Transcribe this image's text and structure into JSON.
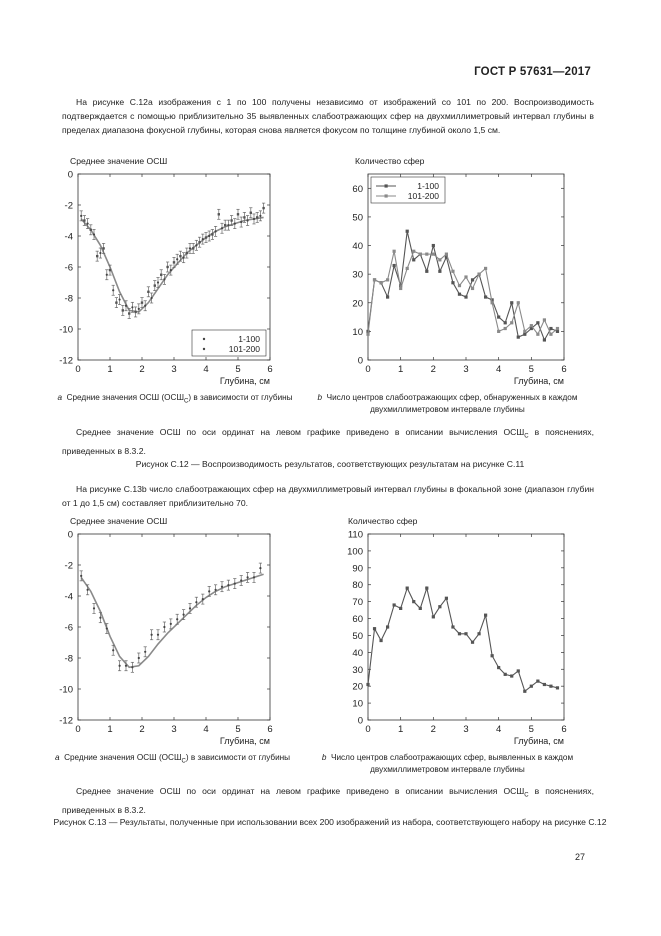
{
  "header": "ГОСТ Р 57631—2017",
  "intro_paragraph": "На рисунке С.12a изображения с 1 по 100 получены независимо от изображений со 101 по 200. Воспроизводимость подтверждается с помощью приблизительно 35 выявленных слабоотражающих сфер на двухмиллиметровый интервал глубины в пределах диапазона фокусной глубины, которая снова является фокусом по толщине глубиной около 1,5 см.",
  "fig12": {
    "left_chart_title": "Среднее значение ОСШ",
    "right_chart_title": "Количество сфер",
    "caption_a_marker": "a",
    "caption_a": "Средние значения ОСШ (ОСШ",
    "caption_a_sub": "С",
    "caption_a_tail": ") в зависимости от глубины",
    "caption_b_marker": "b",
    "caption_b": "Число центров слабоотражающих сфер, обнаруженных в каждом двухмиллиметровом интервале глубины",
    "note": "Среднее значение ОСШ по оси ординат на левом графике приведено в описании вычисления ОСШ",
    "note_sub": "С",
    "note_tail": " в пояснениях, приведенных в 8.3.2.",
    "title": "Рисунок С.12 — Воспроизводимость результатов, соответствующих результатам на рисунке С.11"
  },
  "mid_paragraph": "На рисунке С.13b число слабоотражающих сфер на двухмиллиметровый интервал глубины в фокальной зоне (диапазон глубин от 1 до 1,5 см) составляет приблизительно 70.",
  "fig13": {
    "left_chart_title": "Среднее значение ОСШ",
    "right_chart_title": "Количество сфер",
    "caption_a_marker": "a",
    "caption_a": "Средние значения ОСШ (ОСШ",
    "caption_a_sub": "С",
    "caption_a_tail": ") в зависимости от глубины",
    "caption_b_marker": "b",
    "caption_b": "Число центров слабоотражающих сфер, выявленных в каждом двухмиллиметровом интервале глубины",
    "note": "Среднее значение ОСШ по оси ординат на левом графике приведено в описании вычисления ОСШ",
    "note_sub": "С",
    "note_tail": " в пояснениях, приведенных в 8.3.2.",
    "title": "Рисунок С.13 — Результаты, полученные при использовании всех 200 изображений из набора, соответствующего набору на рисунке С.12"
  },
  "page_number": "27",
  "colors": {
    "line_dark": "#555555",
    "line_light": "#8a8a8a",
    "axis": "#333333"
  },
  "chart_data": [
    {
      "type": "scatter",
      "xlabel": "Глубина, см",
      "ylabel": "",
      "xlim": [
        0,
        6
      ],
      "ylim": [
        -12,
        0
      ],
      "xticks": [
        0,
        1,
        2,
        3,
        4,
        5,
        6
      ],
      "yticks": [
        0,
        -2,
        -4,
        -6,
        -8,
        -10,
        -12
      ],
      "legend_position": "bottom-right",
      "fit_curve": {
        "x": [
          0.1,
          0.4,
          0.7,
          1.0,
          1.3,
          1.6,
          1.9,
          2.2,
          2.5,
          2.8,
          3.1,
          3.4,
          3.7,
          4.0,
          4.3,
          4.6,
          4.9,
          5.2,
          5.5,
          5.8
        ],
        "y": [
          -2.9,
          -3.6,
          -4.6,
          -6.0,
          -7.6,
          -8.8,
          -8.9,
          -8.3,
          -7.4,
          -6.5,
          -5.8,
          -5.1,
          -4.6,
          -4.1,
          -3.7,
          -3.4,
          -3.2,
          -3.0,
          -2.9,
          -2.8
        ]
      },
      "series": [
        {
          "name": "1-100",
          "x": [
            0.1,
            0.3,
            0.5,
            0.7,
            0.9,
            1.1,
            1.3,
            1.5,
            1.7,
            1.9,
            2.1,
            2.3,
            2.5,
            2.7,
            2.9,
            3.1,
            3.3,
            3.5,
            3.7,
            3.9,
            4.1,
            4.3,
            4.5,
            4.7,
            4.9,
            5.1,
            5.3,
            5.5,
            5.7
          ],
          "y": [
            -2.7,
            -3.2,
            -3.9,
            -5.1,
            -6.5,
            -7.5,
            -8.1,
            -8.5,
            -8.6,
            -8.7,
            -8.5,
            -8.0,
            -7.0,
            -6.8,
            -6.2,
            -5.5,
            -5.4,
            -4.8,
            -4.6,
            -4.2,
            -4.0,
            -3.7,
            -3.5,
            -3.3,
            -3.2,
            -3.1,
            -3.0,
            -2.9,
            -2.7
          ]
        },
        {
          "name": "101-200",
          "x": [
            0.2,
            0.4,
            0.6,
            0.8,
            1.0,
            1.2,
            1.4,
            1.6,
            1.8,
            2.0,
            2.2,
            2.4,
            2.6,
            2.8,
            3.0,
            3.2,
            3.4,
            3.6,
            3.8,
            4.0,
            4.2,
            4.4,
            4.6,
            4.8,
            5.0,
            5.2,
            5.4,
            5.6,
            5.8
          ],
          "y": [
            -3.0,
            -3.6,
            -5.3,
            -4.8,
            -6.2,
            -8.3,
            -8.8,
            -9.0,
            -8.9,
            -8.3,
            -7.6,
            -7.2,
            -6.5,
            -6.0,
            -5.7,
            -5.3,
            -5.1,
            -4.8,
            -4.4,
            -4.1,
            -3.9,
            -2.6,
            -3.3,
            -3.0,
            -2.6,
            -2.8,
            -2.5,
            -2.8,
            -2.2
          ]
        }
      ]
    },
    {
      "type": "line",
      "xlabel": "Глубина, см",
      "ylabel": "",
      "xlim": [
        0,
        6
      ],
      "ylim": [
        0,
        65
      ],
      "xticks": [
        0,
        1,
        2,
        3,
        4,
        5,
        6
      ],
      "yticks": [
        0,
        10,
        20,
        30,
        40,
        50,
        60
      ],
      "legend_position": "top-left",
      "series": [
        {
          "name": "1-100",
          "x": [
            0.0,
            0.2,
            0.4,
            0.6,
            0.8,
            1.0,
            1.2,
            1.4,
            1.6,
            1.8,
            2.0,
            2.2,
            2.4,
            2.6,
            2.8,
            3.0,
            3.2,
            3.4,
            3.6,
            3.8,
            4.0,
            4.2,
            4.4,
            4.6,
            4.8,
            5.0,
            5.2,
            5.4,
            5.6,
            5.8
          ],
          "y": [
            10,
            28,
            27,
            22,
            33,
            26,
            45,
            35,
            37,
            31,
            40,
            31,
            36,
            27,
            23,
            22,
            28,
            30,
            22,
            21,
            15,
            13,
            20,
            8,
            9,
            11,
            13,
            7,
            11,
            10
          ]
        },
        {
          "name": "101-200",
          "x": [
            0.0,
            0.2,
            0.4,
            0.6,
            0.8,
            1.0,
            1.2,
            1.4,
            1.6,
            1.8,
            2.0,
            2.2,
            2.4,
            2.6,
            2.8,
            3.0,
            3.2,
            3.4,
            3.6,
            3.8,
            4.0,
            4.2,
            4.4,
            4.6,
            4.8,
            5.0,
            5.2,
            5.4,
            5.6,
            5.8
          ],
          "y": [
            9,
            28,
            27,
            28,
            38,
            25,
            32,
            38,
            37,
            37,
            37,
            35,
            37,
            31,
            26,
            29,
            25,
            30,
            32,
            20,
            10,
            11,
            13,
            20,
            10,
            12,
            9,
            14,
            9,
            11
          ]
        }
      ]
    },
    {
      "type": "scatter",
      "xlabel": "Глубина, см",
      "ylabel": "",
      "xlim": [
        0,
        6
      ],
      "ylim": [
        -12,
        0
      ],
      "xticks": [
        0,
        1,
        2,
        3,
        4,
        5,
        6
      ],
      "yticks": [
        0,
        -2,
        -4,
        -6,
        -8,
        -10,
        -12
      ],
      "fit_curve": {
        "x": [
          0.1,
          0.4,
          0.7,
          1.0,
          1.3,
          1.6,
          1.9,
          2.2,
          2.5,
          2.8,
          3.1,
          3.4,
          3.7,
          4.0,
          4.3,
          4.6,
          4.9,
          5.2,
          5.5,
          5.8
        ],
        "y": [
          -2.8,
          -3.7,
          -5.0,
          -6.6,
          -7.9,
          -8.6,
          -8.5,
          -7.9,
          -7.1,
          -6.4,
          -5.8,
          -5.2,
          -4.6,
          -4.1,
          -3.7,
          -3.4,
          -3.2,
          -3.0,
          -2.8,
          -2.6
        ]
      },
      "series": [
        {
          "name": "",
          "x": [
            0.1,
            0.3,
            0.5,
            0.7,
            0.9,
            1.1,
            1.3,
            1.5,
            1.7,
            1.9,
            2.1,
            2.3,
            2.5,
            2.7,
            2.9,
            3.1,
            3.3,
            3.5,
            3.7,
            3.9,
            4.1,
            4.3,
            4.5,
            4.7,
            4.9,
            5.1,
            5.3,
            5.5,
            5.7
          ],
          "y": [
            -2.7,
            -3.6,
            -4.8,
            -5.4,
            -6.1,
            -7.5,
            -8.5,
            -8.5,
            -8.6,
            -8.0,
            -7.6,
            -6.5,
            -6.5,
            -6.0,
            -5.8,
            -5.5,
            -5.2,
            -4.8,
            -4.4,
            -4.2,
            -3.7,
            -3.6,
            -3.4,
            -3.3,
            -3.2,
            -3.0,
            -2.8,
            -2.8,
            -2.2
          ]
        }
      ]
    },
    {
      "type": "line",
      "xlabel": "Глубина, см",
      "ylabel": "",
      "xlim": [
        0,
        6
      ],
      "ylim": [
        0,
        110
      ],
      "xticks": [
        0,
        1,
        2,
        3,
        4,
        5,
        6
      ],
      "yticks": [
        0,
        10,
        20,
        30,
        40,
        50,
        60,
        70,
        80,
        90,
        100,
        110
      ],
      "series": [
        {
          "name": "",
          "x": [
            0.0,
            0.2,
            0.4,
            0.6,
            0.8,
            1.0,
            1.2,
            1.4,
            1.6,
            1.8,
            2.0,
            2.2,
            2.4,
            2.6,
            2.8,
            3.0,
            3.2,
            3.4,
            3.6,
            3.8,
            4.0,
            4.2,
            4.4,
            4.6,
            4.8,
            5.0,
            5.2,
            5.4,
            5.6,
            5.8
          ],
          "y": [
            21,
            54,
            47,
            55,
            68,
            66,
            78,
            70,
            66,
            78,
            61,
            67,
            72,
            55,
            51,
            51,
            46,
            51,
            62,
            38,
            31,
            27,
            26,
            29,
            17,
            20,
            23,
            21,
            20,
            19
          ]
        }
      ]
    }
  ]
}
